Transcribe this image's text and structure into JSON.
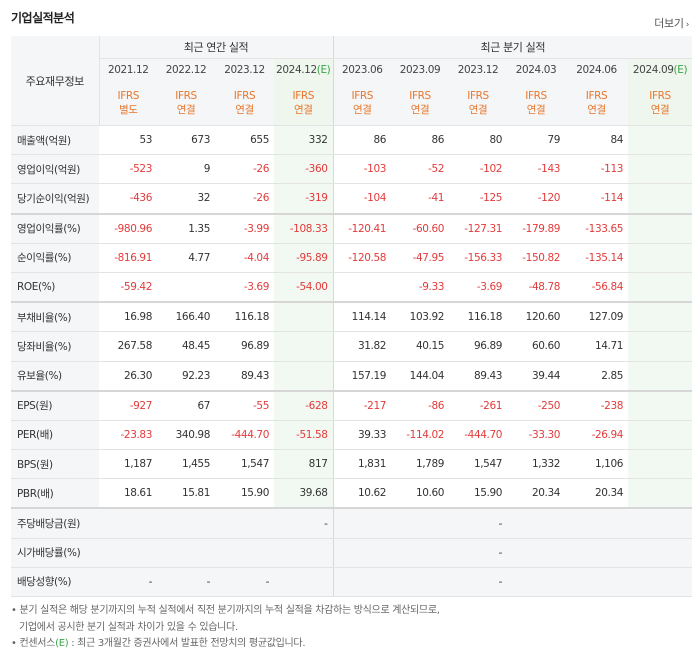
{
  "header": {
    "title": "기업실적분석",
    "more_label": "더보기",
    "more_icon": "chevron-right-icon"
  },
  "columns": {
    "row_header": "주요재무정보",
    "annual_group": "최근 연간 실적",
    "quarter_group": "최근 분기 실적",
    "periods": [
      {
        "label": "2021.12",
        "estimate": "",
        "std": "IFRS",
        "type": "별도"
      },
      {
        "label": "2022.12",
        "estimate": "",
        "std": "IFRS",
        "type": "연결"
      },
      {
        "label": "2023.12",
        "estimate": "",
        "std": "IFRS",
        "type": "연결"
      },
      {
        "label": "2024.12",
        "estimate": "(E)",
        "std": "IFRS",
        "type": "연결"
      },
      {
        "label": "2023.06",
        "estimate": "",
        "std": "IFRS",
        "type": "연결"
      },
      {
        "label": "2023.09",
        "estimate": "",
        "std": "IFRS",
        "type": "연결"
      },
      {
        "label": "2023.12",
        "estimate": "",
        "std": "IFRS",
        "type": "연결"
      },
      {
        "label": "2024.03",
        "estimate": "",
        "std": "IFRS",
        "type": "연결"
      },
      {
        "label": "2024.06",
        "estimate": "",
        "std": "IFRS",
        "type": "연결"
      },
      {
        "label": "2024.09",
        "estimate": "(E)",
        "std": "IFRS",
        "type": "연결"
      }
    ]
  },
  "rows": [
    {
      "label": "매출액(억원)",
      "values": [
        "53",
        "673",
        "655",
        "332",
        "86",
        "86",
        "80",
        "79",
        "84",
        ""
      ]
    },
    {
      "label": "영업이익(억원)",
      "values": [
        "-523",
        "9",
        "-26",
        "-360",
        "-103",
        "-52",
        "-102",
        "-143",
        "-113",
        ""
      ]
    },
    {
      "label": "당기순이익(억원)",
      "values": [
        "-436",
        "32",
        "-26",
        "-319",
        "-104",
        "-41",
        "-125",
        "-120",
        "-114",
        ""
      ]
    },
    {
      "label": "영업이익률(%)",
      "values": [
        "-980.96",
        "1.35",
        "-3.99",
        "-108.33",
        "-120.41",
        "-60.60",
        "-127.31",
        "-179.89",
        "-133.65",
        ""
      ]
    },
    {
      "label": "순이익률(%)",
      "values": [
        "-816.91",
        "4.77",
        "-4.04",
        "-95.89",
        "-120.58",
        "-47.95",
        "-156.33",
        "-150.82",
        "-135.14",
        ""
      ]
    },
    {
      "label": "ROE(%)",
      "values": [
        "-59.42",
        "",
        "-3.69",
        "-54.00",
        "",
        "-9.33",
        "-3.69",
        "-48.78",
        "-56.84",
        ""
      ]
    },
    {
      "label": "부채비율(%)",
      "values": [
        "16.98",
        "166.40",
        "116.18",
        "",
        "114.14",
        "103.92",
        "116.18",
        "120.60",
        "127.09",
        ""
      ]
    },
    {
      "label": "당좌비율(%)",
      "values": [
        "267.58",
        "48.45",
        "96.89",
        "",
        "31.82",
        "40.15",
        "96.89",
        "60.60",
        "14.71",
        ""
      ]
    },
    {
      "label": "유보율(%)",
      "values": [
        "26.30",
        "92.23",
        "89.43",
        "",
        "157.19",
        "144.04",
        "89.43",
        "39.44",
        "2.85",
        ""
      ]
    },
    {
      "label": "EPS(원)",
      "values": [
        "-927",
        "67",
        "-55",
        "-628",
        "-217",
        "-86",
        "-261",
        "-250",
        "-238",
        ""
      ]
    },
    {
      "label": "PER(배)",
      "values": [
        "-23.83",
        "340.98",
        "-444.70",
        "-51.58",
        "39.33",
        "-114.02",
        "-444.70",
        "-33.30",
        "-26.94",
        ""
      ]
    },
    {
      "label": "BPS(원)",
      "values": [
        "1,187",
        "1,455",
        "1,547",
        "817",
        "1,831",
        "1,789",
        "1,547",
        "1,332",
        "1,106",
        ""
      ]
    },
    {
      "label": "PBR(배)",
      "values": [
        "18.61",
        "15.81",
        "15.90",
        "39.68",
        "10.62",
        "10.60",
        "15.90",
        "20.34",
        "20.34",
        ""
      ]
    },
    {
      "label": "주당배당금(원)",
      "values": [
        "",
        "",
        "",
        "-",
        "",
        "",
        "-",
        "",
        "",
        ""
      ]
    },
    {
      "label": "시가배당률(%)",
      "values": [
        "",
        "",
        "",
        "",
        "",
        "",
        "-",
        "",
        "",
        ""
      ]
    },
    {
      "label": "배당성향(%)",
      "values": [
        "-",
        "-",
        "-",
        "",
        "",
        "",
        "-",
        "",
        "",
        ""
      ]
    }
  ],
  "notes": {
    "line1": "분기 실적은 해당 분기까지의 누적 실적에서 직전 분기까지의 누적 실적을 차감하는 방식으로 계산되므로,",
    "line2": "기업에서 공시한 분기 실적과 차이가 있을 수 있습니다.",
    "line3_prefix": "컨센서스",
    "line3_e": "(E)",
    "line3_suffix": ": 최근 3개월간 증권사에서 발표한 전망치의 평균값입니다."
  },
  "colors": {
    "negative": "#e33b3b",
    "estimate_bg": "#f2f9f2",
    "ifrs": "#e8762c",
    "estimate_mark": "#3aa54a"
  }
}
